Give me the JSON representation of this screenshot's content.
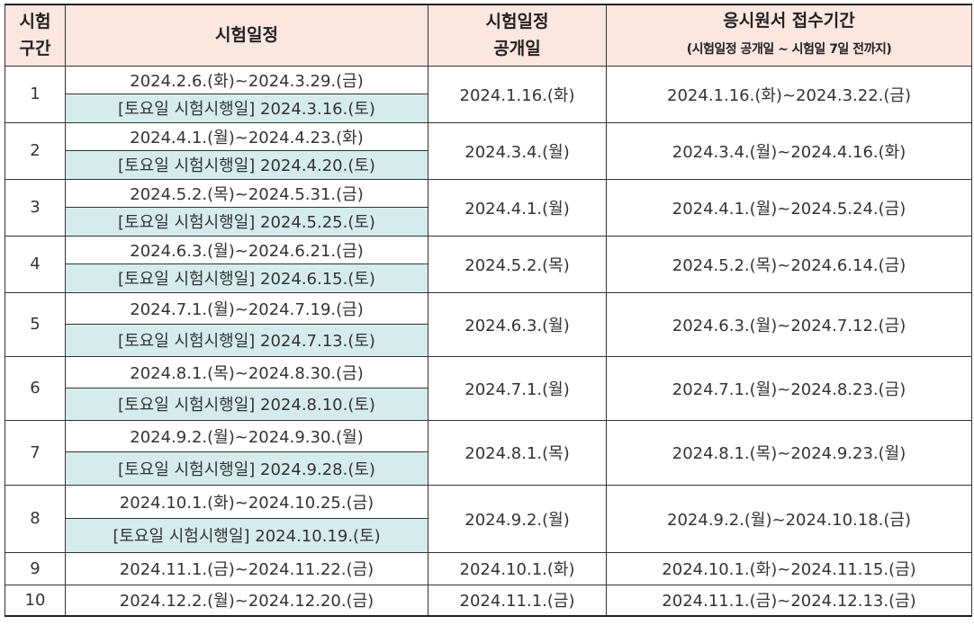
{
  "headers": {
    "col1_line1": "시험",
    "col1_line2": "구간",
    "col2": "시험일정",
    "col3_line1": "시험일정",
    "col3_line2": "공개일",
    "col4_line1": "응시원서 접수기간",
    "col4_line2": "(시험일정 공개일 ~ 시험일 7일 전까지)"
  },
  "rows": [
    {
      "no": "1",
      "schedule": "2024.2.6.(화)~2024.3.29.(금)",
      "saturday": "[토요일 시험시행일] 2024.3.16.(토)",
      "announce": "2024.1.16.(화)",
      "apply": "2024.1.16.(화)~2024.3.22.(금)"
    },
    {
      "no": "2",
      "schedule": "2024.4.1.(월)~2024.4.23.(화)",
      "saturday": "[토요일 시험시행일] 2024.4.20.(토)",
      "announce": "2024.3.4.(월)",
      "apply": "2024.3.4.(월)~2024.4.16.(화)"
    },
    {
      "no": "3",
      "schedule": "2024.5.2.(목)~2024.5.31.(금)",
      "saturday": "[토요일 시험시행일] 2024.5.25.(토)",
      "announce": "2024.4.1.(월)",
      "apply": "2024.4.1.(월)~2024.5.24.(금)"
    },
    {
      "no": "4",
      "schedule": "2024.6.3.(월)~2024.6.21.(금)",
      "saturday": "[토요일 시험시행일] 2024.6.15.(토)",
      "announce": "2024.5.2.(목)",
      "apply": "2024.5.2.(목)~2024.6.14.(금)"
    },
    {
      "no": "5",
      "schedule": "2024.7.1.(월)~2024.7.19.(금)",
      "saturday": "[토요일 시험시행일] 2024.7.13.(토)",
      "announce": "2024.6.3.(월)",
      "apply": "2024.6.3.(월)~2024.7.12.(금)"
    },
    {
      "no": "6",
      "schedule": "2024.8.1.(목)~2024.8.30.(금)",
      "saturday": "[토요일 시험시행일] 2024.8.10.(토)",
      "announce": "2024.7.1.(월)",
      "apply": "2024.7.1.(월)~2024.8.23.(금)"
    },
    {
      "no": "7",
      "schedule": "2024.9.2.(월)~2024.9.30.(월)",
      "saturday": "[토요일 시험시행일] 2024.9.28.(토)",
      "announce": "2024.8.1.(목)",
      "apply": "2024.8.1.(목)~2024.9.23.(월)"
    },
    {
      "no": "8",
      "schedule": "2024.10.1.(화)~2024.10.25.(금)",
      "saturday": "[토요일 시험시행일] 2024.10.19.(토)",
      "announce": "2024.9.2.(월)",
      "apply": "2024.9.2.(월)~2024.10.18.(금)"
    },
    {
      "no": "9",
      "schedule": "2024.11.1.(금)~2024.11.22.(금)",
      "announce": "2024.10.1.(화)",
      "apply": "2024.10.1.(화)~2024.11.15.(금)"
    },
    {
      "no": "10",
      "schedule": "2024.12.2.(월)~2024.12.20.(금)",
      "announce": "2024.11.1.(금)",
      "apply": "2024.11.1.(금)~2024.12.13.(금)"
    }
  ]
}
